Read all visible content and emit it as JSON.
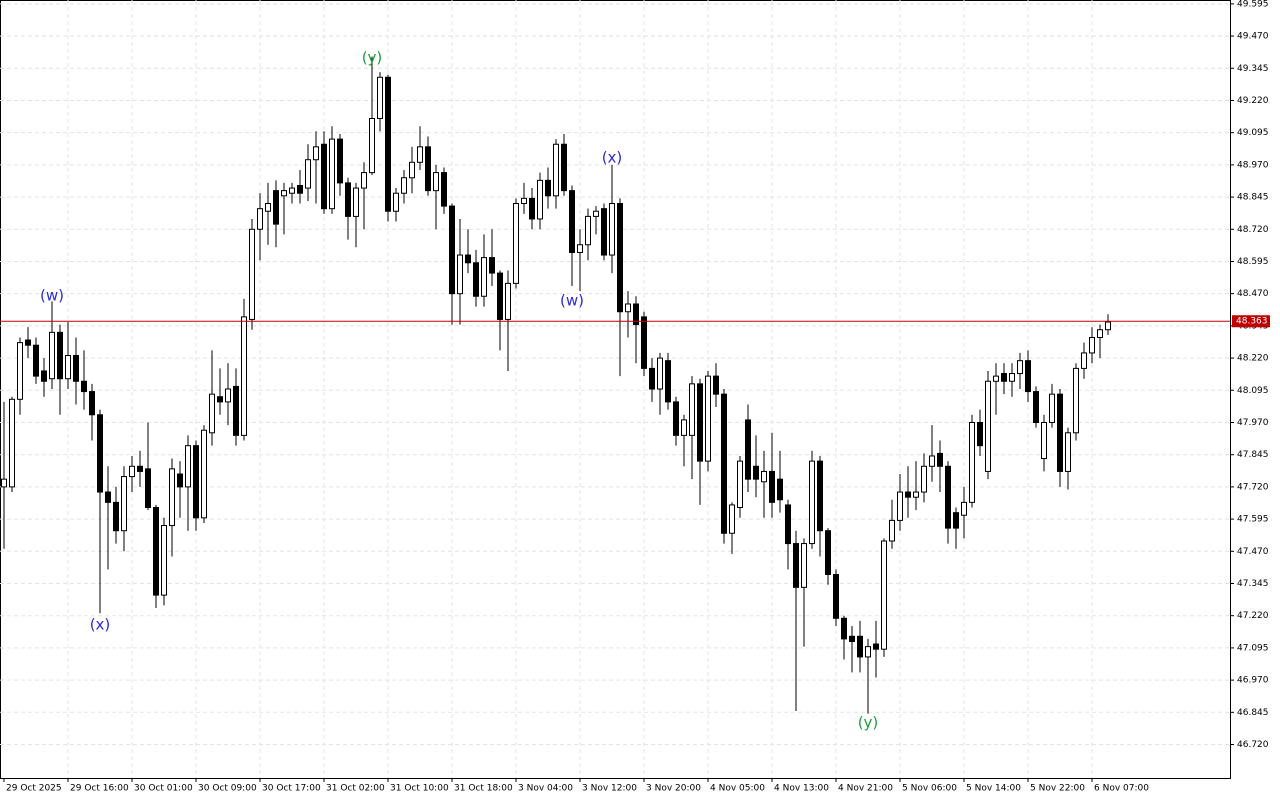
{
  "chart_data": {
    "type": "candlestick",
    "categories": [
      "29 Oct 2025",
      null,
      null,
      null,
      null,
      null,
      null,
      null,
      "29 Oct 16:00",
      null,
      null,
      null,
      null,
      null,
      null,
      null,
      "30 Oct 01:00",
      null,
      null,
      null,
      null,
      null,
      null,
      null,
      "30 Oct 09:00",
      null,
      null,
      null,
      null,
      null,
      null,
      null,
      "30 Oct 17:00",
      null,
      null,
      null,
      null,
      null,
      null,
      null,
      "31 Oct 02:00",
      null,
      null,
      null,
      null,
      null,
      null,
      null,
      "31 Oct 10:00",
      null,
      null,
      null,
      null,
      null,
      null,
      null,
      "31 Oct 18:00",
      null,
      null,
      null,
      null,
      null,
      null,
      null,
      "3 Nov 04:00",
      null,
      null,
      null,
      null,
      null,
      null,
      null,
      "3 Nov 12:00",
      null,
      null,
      null,
      null,
      null,
      null,
      null,
      "3 Nov 20:00",
      null,
      null,
      null,
      null,
      null,
      null,
      null,
      "4 Nov 05:00",
      null,
      null,
      null,
      null,
      null,
      null,
      null,
      "4 Nov 13:00",
      null,
      null,
      null,
      null,
      null,
      null,
      null,
      "4 Nov 21:00",
      null,
      null,
      null,
      null,
      null,
      null,
      null,
      "5 Nov 06:00",
      null,
      null,
      null,
      null,
      null,
      null,
      null,
      "5 Nov 14:00",
      null,
      null,
      null,
      null,
      null,
      null,
      null,
      "5 Nov 22:00",
      null,
      null,
      null,
      null,
      null,
      null,
      null,
      "6 Nov 07:00",
      null,
      null
    ],
    "open": [
      47.72,
      47.72,
      48.06,
      48.29,
      48.27,
      48.17,
      48.14,
      48.32,
      48.14,
      48.23,
      48.13,
      48.09,
      48.0,
      47.7,
      47.66,
      47.55,
      47.76,
      47.8,
      47.79,
      47.64,
      47.3,
      47.57,
      47.77,
      47.72,
      47.88,
      47.6,
      47.93,
      48.07,
      48.05,
      48.11,
      47.92,
      48.37,
      48.72,
      48.79,
      48.87,
      48.85,
      48.86,
      48.89,
      48.88,
      48.99,
      49.05,
      48.8,
      49.07,
      48.9,
      48.77,
      48.88,
      48.94,
      49.15,
      49.31,
      48.79,
      48.86,
      48.92,
      48.98,
      49.04,
      48.87,
      48.94,
      48.81,
      48.47,
      48.62,
      48.59,
      48.46,
      48.61,
      48.55,
      48.37,
      48.51,
      48.82,
      48.84,
      48.76,
      48.91,
      48.85,
      49.05,
      48.87,
      48.63,
      48.66,
      48.77,
      48.8,
      48.62,
      48.82,
      48.4,
      48.43,
      48.38,
      48.18,
      48.1,
      48.21,
      48.05,
      47.92,
      47.92,
      48.12,
      47.82,
      48.15,
      48.08,
      47.54,
      47.64,
      47.98,
      47.8,
      47.74,
      47.78,
      47.75,
      47.65,
      47.5,
      47.33,
      47.5,
      47.82,
      47.55,
      47.38,
      47.21,
      47.14,
      47.14,
      47.06,
      47.11,
      47.09,
      47.51,
      47.59,
      47.7,
      47.68,
      47.7,
      47.8,
      47.85,
      47.8,
      47.62,
      47.61,
      47.66,
      47.97,
      47.78,
      48.13,
      48.16,
      48.13,
      48.16,
      48.21,
      48.09,
      47.83,
      47.97,
      48.08,
      47.78,
      47.93,
      48.18,
      48.24,
      48.3,
      48.33
    ],
    "high": [
      48.05,
      48.07,
      48.3,
      48.34,
      48.3,
      48.22,
      48.44,
      48.35,
      48.36,
      48.3,
      48.25,
      48.12,
      48.02,
      47.8,
      47.72,
      47.8,
      47.84,
      47.86,
      47.97,
      47.65,
      47.6,
      47.83,
      47.82,
      47.92,
      47.9,
      47.96,
      48.25,
      48.18,
      48.2,
      48.18,
      48.45,
      48.76,
      48.86,
      48.9,
      48.91,
      48.9,
      48.9,
      48.95,
      49.05,
      49.1,
      49.1,
      49.12,
      49.09,
      48.92,
      48.9,
      48.98,
      49.39,
      49.33,
      49.32,
      48.88,
      48.95,
      49.04,
      49.12,
      49.08,
      48.97,
      48.96,
      48.82,
      48.76,
      48.72,
      48.64,
      48.7,
      48.72,
      48.56,
      48.56,
      48.84,
      48.9,
      48.88,
      48.94,
      48.96,
      49.07,
      49.09,
      48.89,
      48.72,
      48.8,
      48.81,
      48.82,
      48.97,
      48.84,
      48.48,
      48.46,
      48.4,
      48.22,
      48.24,
      48.24,
      48.07,
      48.0,
      48.15,
      48.14,
      48.17,
      48.2,
      48.1,
      47.66,
      47.84,
      48.04,
      47.92,
      47.86,
      47.93,
      47.86,
      47.67,
      47.55,
      47.52,
      47.86,
      47.84,
      47.56,
      47.4,
      47.22,
      47.18,
      47.2,
      47.13,
      47.2,
      47.52,
      47.67,
      47.77,
      47.8,
      47.82,
      47.85,
      47.96,
      47.9,
      47.82,
      47.64,
      47.72,
      48.0,
      48.02,
      48.17,
      48.2,
      48.2,
      48.2,
      48.24,
      48.25,
      48.11,
      48.0,
      48.12,
      48.1,
      47.95,
      48.2,
      48.28,
      48.34,
      48.35,
      48.39
    ],
    "low": [
      47.48,
      47.7,
      48.0,
      48.22,
      48.12,
      48.07,
      48.1,
      48.0,
      48.1,
      48.04,
      48.02,
      47.9,
      47.23,
      47.4,
      47.5,
      47.47,
      47.7,
      47.72,
      47.63,
      47.25,
      47.26,
      47.45,
      47.6,
      47.55,
      47.55,
      47.58,
      47.88,
      48.0,
      47.96,
      47.88,
      47.9,
      48.33,
      48.6,
      48.66,
      48.65,
      48.7,
      48.82,
      48.82,
      48.83,
      48.82,
      48.78,
      48.78,
      48.85,
      48.68,
      48.65,
      48.72,
      48.93,
      49.1,
      48.75,
      48.75,
      48.82,
      48.86,
      48.95,
      48.85,
      48.72,
      48.78,
      48.35,
      48.35,
      48.55,
      48.42,
      48.42,
      48.5,
      48.25,
      48.17,
      48.49,
      48.78,
      48.72,
      48.72,
      48.8,
      48.8,
      48.85,
      48.5,
      48.48,
      48.6,
      48.7,
      48.6,
      48.55,
      48.15,
      48.3,
      48.2,
      48.15,
      48.05,
      48.0,
      48.02,
      47.88,
      47.8,
      47.75,
      47.65,
      47.78,
      48.03,
      47.5,
      47.46,
      47.6,
      47.7,
      47.68,
      47.6,
      47.6,
      47.62,
      47.4,
      46.85,
      47.1,
      47.48,
      47.45,
      47.34,
      47.18,
      47.05,
      47.0,
      47.0,
      46.84,
      46.98,
      47.06,
      47.48,
      47.55,
      47.6,
      47.63,
      47.66,
      47.74,
      47.7,
      47.5,
      47.48,
      47.52,
      47.64,
      47.84,
      47.75,
      48.0,
      48.08,
      48.07,
      48.1,
      48.05,
      47.95,
      47.78,
      47.95,
      47.72,
      47.71,
      47.9,
      48.14,
      48.2,
      48.22,
      48.31
    ],
    "close": [
      47.75,
      48.06,
      48.28,
      48.27,
      48.15,
      48.13,
      48.32,
      48.14,
      48.23,
      48.13,
      48.09,
      48.0,
      47.7,
      47.66,
      47.55,
      47.76,
      47.8,
      47.78,
      47.64,
      47.3,
      47.57,
      47.79,
      47.72,
      47.88,
      47.6,
      47.94,
      48.08,
      48.05,
      48.1,
      47.92,
      48.38,
      48.72,
      48.8,
      48.82,
      48.74,
      48.87,
      48.88,
      48.86,
      48.99,
      49.04,
      48.8,
      49.07,
      48.9,
      48.77,
      48.88,
      48.94,
      49.15,
      49.31,
      48.79,
      48.86,
      48.92,
      48.98,
      49.04,
      48.87,
      48.94,
      48.81,
      48.47,
      48.62,
      48.59,
      48.46,
      48.61,
      48.55,
      48.37,
      48.51,
      48.82,
      48.84,
      48.76,
      48.91,
      48.85,
      49.05,
      48.87,
      48.63,
      48.66,
      48.77,
      48.79,
      48.62,
      48.82,
      48.4,
      48.43,
      48.35,
      48.18,
      48.1,
      48.22,
      48.05,
      47.92,
      47.98,
      48.12,
      47.82,
      48.15,
      48.08,
      47.54,
      47.65,
      47.82,
      47.75,
      47.75,
      47.78,
      47.66,
      47.67,
      47.5,
      47.33,
      47.5,
      47.82,
      47.55,
      47.38,
      47.21,
      47.13,
      47.12,
      47.06,
      47.1,
      47.09,
      47.51,
      47.59,
      47.7,
      47.68,
      47.7,
      47.8,
      47.84,
      47.8,
      47.56,
      47.56,
      47.66,
      47.97,
      47.88,
      48.13,
      48.15,
      48.13,
      48.16,
      48.21,
      48.09,
      47.97,
      47.97,
      48.08,
      47.78,
      47.93,
      48.18,
      48.24,
      48.3,
      48.33,
      48.36
    ],
    "bull_color": "#ffffff",
    "bear_color": "#000000",
    "wick_color": "#000000",
    "ylim": [
      46.59,
      49.61
    ],
    "yticks": [
      49.595,
      {
        "value": 49.47,
        "label": "49.470"
      },
      49.345,
      {
        "value": 49.22,
        "label": "49.220"
      },
      49.095,
      {
        "value": 48.97,
        "label": "48.970"
      },
      48.845,
      {
        "value": 48.72,
        "label": "48.720"
      },
      48.595,
      {
        "value": 48.47,
        "label": "48.470"
      },
      48.345,
      {
        "value": 48.22,
        "label": "48.220"
      },
      48.095,
      {
        "value": 47.97,
        "label": "47.970"
      },
      47.845,
      {
        "value": 47.72,
        "label": "47.720"
      },
      47.595,
      {
        "value": 47.47,
        "label": "47.470"
      },
      47.345,
      {
        "value": 47.22,
        "label": "47.220"
      },
      47.095,
      {
        "value": 46.97,
        "label": "46.970"
      },
      46.845,
      {
        "value": 46.72,
        "label": "46.720"
      }
    ],
    "grid": true,
    "current_price": 48.363,
    "current_price_color": "#c00000",
    "annotations": [
      {
        "text": "(w)",
        "color": "#2b2bd6"
      },
      {
        "text": "(x)",
        "color": "#2b2bd6"
      },
      {
        "text": "(y)",
        "color": "#1e9e3e"
      },
      {
        "text": "(w)",
        "color": "#2b2bd6"
      },
      {
        "text": "(x)",
        "color": "#2b2bd6"
      },
      {
        "text": "(y)",
        "color": "#1e9e3e"
      }
    ]
  }
}
